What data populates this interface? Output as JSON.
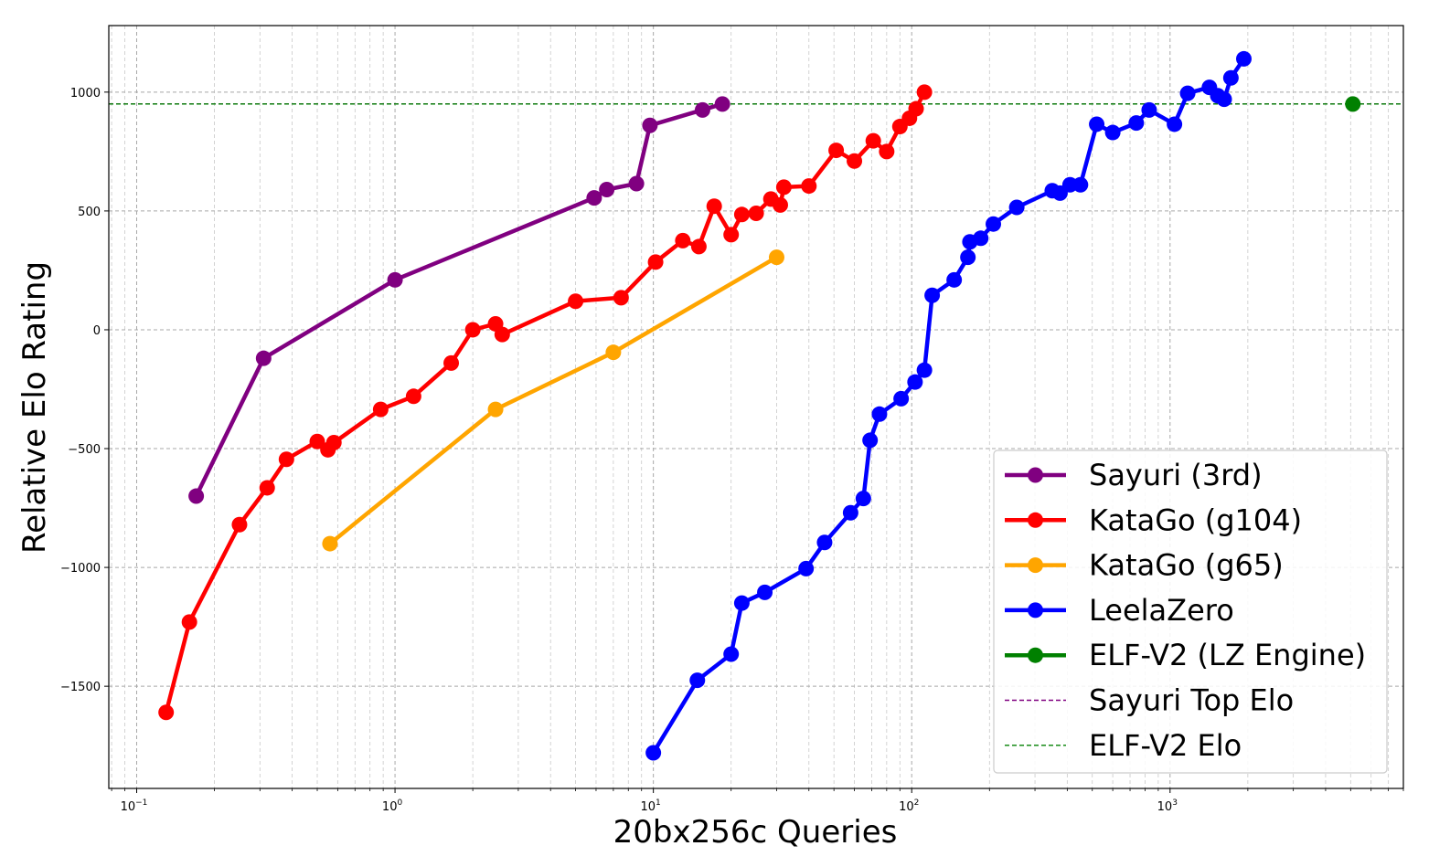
{
  "chart_data": {
    "type": "line",
    "title": "",
    "xlabel": "20bx256c Queries",
    "ylabel": "Relative Elo Rating",
    "xscale": "log",
    "xlim": [
      0.078,
      8000
    ],
    "ylim": [
      -1930,
      1280
    ],
    "grid": true,
    "legend_position": "lower-right",
    "x_ticks": [
      {
        "value": 0.1,
        "base": "10",
        "exp": "−1"
      },
      {
        "value": 1,
        "base": "10",
        "exp": "0"
      },
      {
        "value": 10,
        "base": "10",
        "exp": "1"
      },
      {
        "value": 100,
        "base": "10",
        "exp": "2"
      },
      {
        "value": 1000,
        "base": "10",
        "exp": "3"
      }
    ],
    "y_ticks": [
      {
        "value": 1000,
        "label": "1000"
      },
      {
        "value": 500,
        "label": "500"
      },
      {
        "value": 0,
        "label": "0"
      },
      {
        "value": -500,
        "label": "−500"
      },
      {
        "value": -1000,
        "label": "−1000"
      },
      {
        "value": -1500,
        "label": "−1500"
      }
    ],
    "series": [
      {
        "name": "Sayuri (3rd)",
        "color": "#800080",
        "style": "line-marker",
        "x": [
          0.17,
          0.31,
          1.0,
          5.9,
          6.6,
          8.6,
          9.7,
          15.5,
          18.5
        ],
        "y": [
          -700,
          -120,
          210,
          555,
          590,
          615,
          860,
          925,
          950
        ]
      },
      {
        "name": "KataGo (g104)",
        "color": "#ff0000",
        "style": "line-marker",
        "x": [
          0.13,
          0.16,
          0.25,
          0.32,
          0.38,
          0.5,
          0.55,
          0.58,
          0.88,
          1.18,
          1.65,
          2.0,
          2.45,
          2.6,
          5.0,
          7.5,
          10.2,
          13.0,
          15.0,
          17.2,
          20.0,
          22.0,
          25.0,
          28.5,
          31.0,
          32.0,
          40.0,
          51.0,
          60.0,
          71.0,
          80.0,
          90.0,
          98.0,
          104.0,
          112.0
        ],
        "y": [
          -1610,
          -1230,
          -820,
          -665,
          -545,
          -470,
          -505,
          -475,
          -335,
          -280,
          -140,
          0,
          25,
          -20,
          120,
          135,
          285,
          375,
          350,
          520,
          400,
          485,
          490,
          550,
          525,
          600,
          605,
          755,
          710,
          795,
          750,
          855,
          890,
          930,
          1000
        ]
      },
      {
        "name": "KataGo (g65)",
        "color": "#ffa500",
        "style": "line-marker",
        "x": [
          0.56,
          2.45,
          7.0,
          30.0
        ],
        "y": [
          -900,
          -335,
          -95,
          305
        ]
      },
      {
        "name": "LeelaZero",
        "color": "#0000ff",
        "style": "line-marker",
        "x": [
          10.0,
          14.8,
          20.0,
          22.0,
          27.0,
          39.0,
          46.0,
          58.0,
          65.0,
          69.0,
          75.0,
          91.0,
          103.0,
          112.0,
          120.0,
          146.0,
          165.0,
          168.0,
          185.0,
          207.0,
          255.0,
          350.0,
          375.0,
          410.0,
          450.0,
          520.0,
          600.0,
          740.0,
          830.0,
          1040.0,
          1170.0,
          1420.0,
          1530.0,
          1620.0,
          1720.0,
          1930.0
        ],
        "y": [
          -1780,
          -1475,
          -1365,
          -1150,
          -1105,
          -1005,
          -895,
          -770,
          -710,
          -465,
          -355,
          -290,
          -220,
          -170,
          145,
          210,
          305,
          370,
          385,
          445,
          515,
          585,
          575,
          610,
          610,
          865,
          830,
          870,
          925,
          865,
          995,
          1020,
          985,
          970,
          1060,
          1140
        ]
      },
      {
        "name": "ELF-V2 (LZ Engine)",
        "color": "#008000",
        "style": "line-marker",
        "x": [
          5100.0
        ],
        "y": [
          950
        ]
      },
      {
        "name": "Sayuri Top Elo",
        "color": "#800080",
        "style": "hline-dashed",
        "y_value": 950
      },
      {
        "name": "ELF-V2 Elo",
        "color": "#008000",
        "style": "hline-dashed",
        "y_value": 950
      }
    ]
  }
}
